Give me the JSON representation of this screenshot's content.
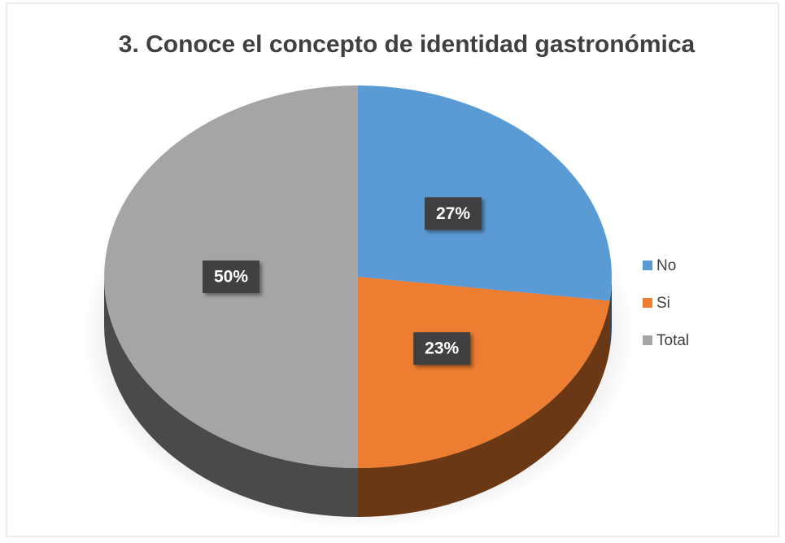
{
  "chart_data": {
    "type": "pie",
    "title": "3. Conoce el concepto de identidad gastronómica",
    "categories": [
      "No",
      "Si",
      "Total"
    ],
    "values": [
      27,
      23,
      50
    ],
    "value_labels": [
      "27%",
      "23%",
      "50%"
    ],
    "colors": [
      "#5b9bd5",
      "#ed7d31",
      "#a5a5a5"
    ],
    "legend": "right"
  }
}
